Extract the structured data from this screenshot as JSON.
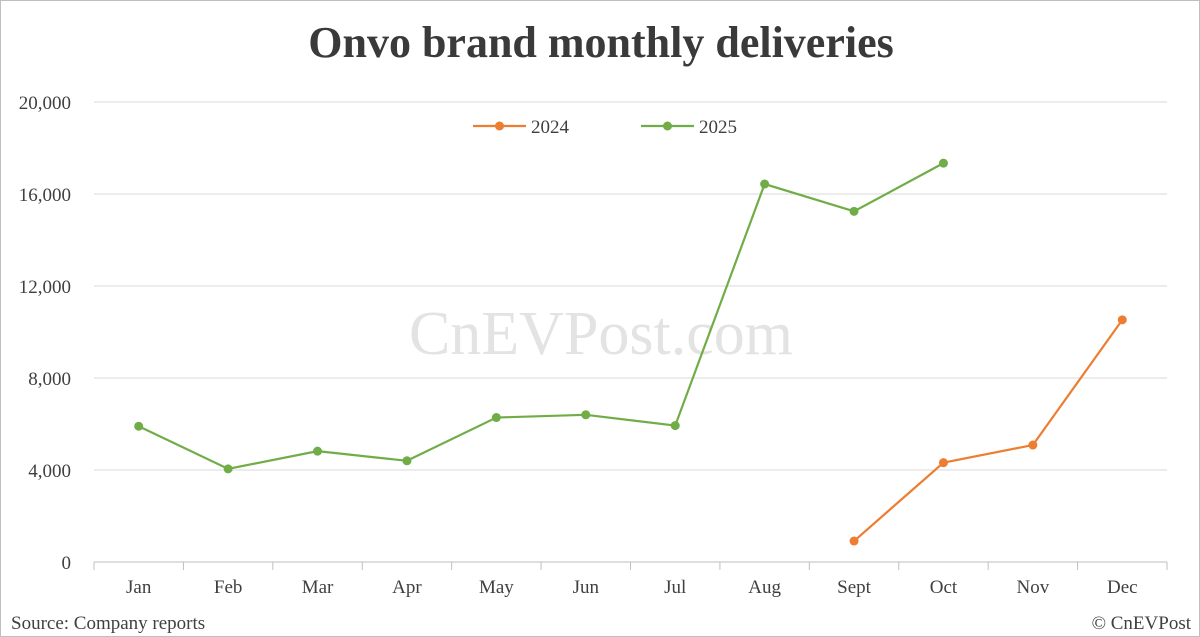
{
  "chart_data": {
    "type": "line",
    "title": "Onvo brand monthly deliveries",
    "categories": [
      "Jan",
      "Feb",
      "Mar",
      "Apr",
      "May",
      "Jun",
      "Jul",
      "Aug",
      "Sept",
      "Oct",
      "Nov",
      "Dec"
    ],
    "series": [
      {
        "name": "2024",
        "color": "#ed7d31",
        "values": [
          null,
          null,
          null,
          null,
          null,
          null,
          null,
          null,
          912,
          4319,
          5085,
          10528
        ]
      },
      {
        "name": "2025",
        "color": "#70ad47",
        "values": [
          5902,
          4049,
          4820,
          4400,
          6281,
          6400,
          5930,
          16434,
          15246,
          17342,
          null,
          null
        ]
      }
    ],
    "ylim": [
      0,
      20000
    ],
    "yticks": [
      "0",
      "4,000",
      "8,000",
      "12,000",
      "16,000",
      "20,000"
    ],
    "xlabel": "",
    "ylabel": "",
    "grid": true,
    "legend_position": "top-center"
  },
  "watermark": "CnEVPost.com",
  "source": "Source: Company reports",
  "copyright": "© CnEVPost"
}
